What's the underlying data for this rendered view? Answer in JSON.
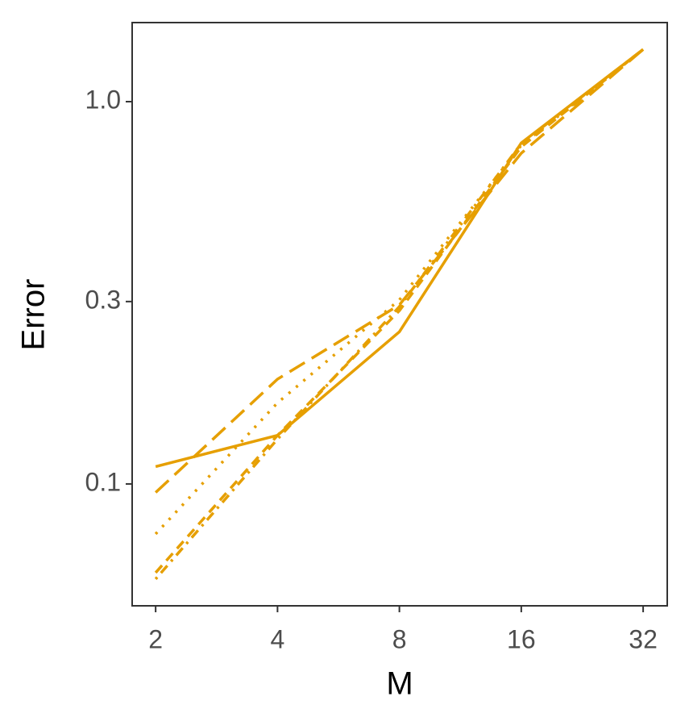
{
  "chart_data": {
    "type": "line",
    "x_label": "M",
    "y_label": "Error",
    "x": [
      2,
      4,
      8,
      16,
      32
    ],
    "xlim": [
      1.75,
      36.7
    ],
    "xticks": [
      2,
      4,
      8,
      16,
      32
    ],
    "xscale": "log2",
    "ylim": [
      0.048,
      1.61
    ],
    "yticks": [
      0.1,
      0.3,
      {
        "value": 1,
        "label": "1.0"
      }
    ],
    "yscale": "log10",
    "grid": false,
    "series": [
      {
        "color": "#E69F00",
        "dash": "solid",
        "values": [
          0.111,
          0.134,
          0.25,
          0.78,
          1.37
        ]
      },
      {
        "color": "#E69F00",
        "dash": "longdash",
        "values": [
          0.095,
          0.188,
          0.294,
          0.733,
          1.37
        ]
      },
      {
        "color": "#E69F00",
        "dash": "dotted",
        "values": [
          0.074,
          0.163,
          0.303,
          0.769,
          1.37
        ]
      },
      {
        "color": "#E69F00",
        "dash": "dashed",
        "values": [
          0.0586,
          0.134,
          0.284,
          0.762,
          1.37
        ]
      },
      {
        "color": "#E69F00",
        "dash": "dotdash",
        "values": [
          0.0564,
          0.131,
          0.291,
          0.777,
          1.37
        ]
      }
    ]
  }
}
